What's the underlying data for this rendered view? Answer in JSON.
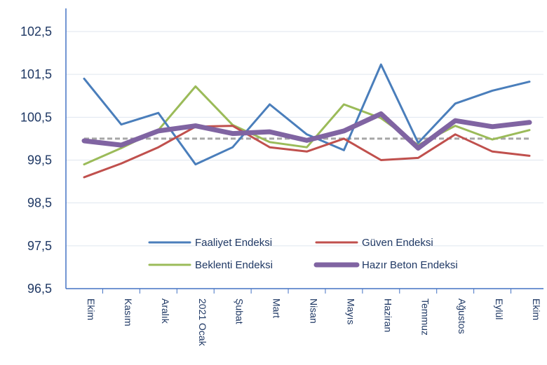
{
  "chart_data": {
    "type": "line",
    "categories": [
      "Ekim",
      "Kasım",
      "Aralık",
      "2021 Ocak",
      "Şubat",
      "Mart",
      "Nisan",
      "Mayıs",
      "Haziran",
      "Temmuz",
      "Ağustos",
      "Eylül",
      "Ekim"
    ],
    "y_ticks": [
      "96,5",
      "97,5",
      "98,5",
      "99,5",
      "100,5",
      "101,5",
      "102,5"
    ],
    "ylim": [
      96.5,
      103.0
    ],
    "grid": true,
    "reference_line": 100,
    "legend_placement": "lower-center",
    "series": [
      {
        "name": "Faaliyet Endeksi",
        "color": "#4a7ebb",
        "values": [
          101.4,
          100.33,
          100.6,
          99.4,
          99.8,
          100.8,
          100.1,
          99.73,
          101.73,
          99.9,
          100.82,
          101.12,
          101.33
        ]
      },
      {
        "name": "Güven Endeksi",
        "color": "#c0504d",
        "values": [
          99.1,
          99.42,
          99.8,
          100.28,
          100.3,
          99.8,
          99.7,
          100.0,
          99.5,
          99.55,
          100.1,
          99.7,
          99.6
        ]
      },
      {
        "name": "Beklenti Endeksi",
        "color": "#9bbb59",
        "values": [
          99.4,
          99.78,
          100.2,
          101.22,
          100.32,
          99.92,
          99.8,
          100.8,
          100.48,
          99.85,
          100.3,
          99.98,
          100.2
        ]
      },
      {
        "name": "Hazır Beton Endeksi",
        "color": "#8064a2",
        "values": [
          99.95,
          99.85,
          100.18,
          100.3,
          100.12,
          100.16,
          99.96,
          100.18,
          100.58,
          99.78,
          100.42,
          100.28,
          100.38
        ]
      }
    ]
  }
}
